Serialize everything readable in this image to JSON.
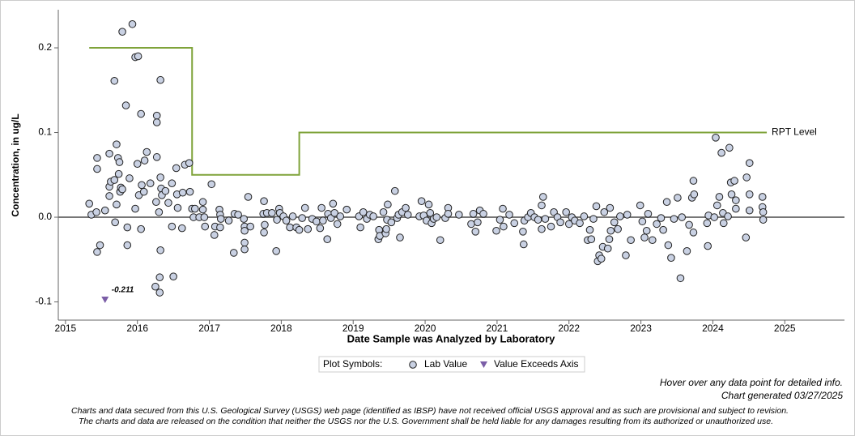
{
  "chart_data": {
    "type": "scatter",
    "x_label": "Date Sample was Analyzed by Laboratory",
    "y_label": "Concentration, in ug/L",
    "xlim": [
      2014.9,
      2025.83
    ],
    "ylim": [
      -0.1215,
      0.245
    ],
    "xticks": [
      2015,
      2016,
      2017,
      2018,
      2019,
      2020,
      2021,
      2022,
      2023,
      2024,
      2025
    ],
    "yticks": [
      -0.1,
      {
        "value": 0,
        "label": "0.0"
      },
      0.1,
      0.2
    ],
    "grid": false,
    "legend_title": "Plot Symbols:",
    "series": [
      {
        "name": "Lab Value",
        "color": "#c9d1e3",
        "marker": "circle",
        "x": [
          2015.33,
          2015.36,
          2015.43,
          2015.44,
          2015.44,
          2015.44,
          2015.48,
          2015.55,
          2015.61,
          2015.61,
          2015.61,
          2015.63,
          2015.68,
          2015.68,
          2015.69,
          2015.71,
          2015.71,
          2015.73,
          2015.74,
          2015.75,
          2015.76,
          2015.77,
          2015.79,
          2015.79,
          2015.84,
          2015.86,
          2015.86,
          2015.89,
          2015.93,
          2015.97,
          2015.97,
          2016.01,
          2016.0,
          2016.02,
          2016.05,
          2016.05,
          2016.06,
          2016.09,
          2016.1,
          2016.13,
          2016.18,
          2016.25,
          2016.26,
          2016.27,
          2016.27,
          2016.27,
          2016.3,
          2016.31,
          2016.31,
          2016.32,
          2016.32,
          2016.32,
          2016.33,
          2016.34,
          2016.39,
          2016.43,
          2016.48,
          2016.48,
          2016.5,
          2016.54,
          2016.55,
          2016.56,
          2016.63,
          2016.62,
          2016.66,
          2016.72,
          2016.73,
          2016.76,
          2016.78,
          2016.8,
          2016.86,
          2016.91,
          2016.91,
          2016.93,
          2016.94,
          2017.03,
          2017.07,
          2017.08,
          2017.14,
          2017.15,
          2017.16,
          2017.15,
          2017.27,
          2017.34,
          2017.35,
          2017.4,
          2017.48,
          2017.49,
          2017.49,
          2017.49,
          2017.49,
          2017.54,
          2017.57,
          2017.75,
          2017.76,
          2017.77,
          2017.76,
          2017.8,
          2017.87,
          2017.93,
          2017.94,
          2017.97,
          2017.98,
          2018.03,
          2018.07,
          2018.12,
          2018.16,
          2018.21,
          2018.25,
          2018.29,
          2018.33,
          2018.37,
          2018.43,
          2018.49,
          2018.54,
          2018.56,
          2018.58,
          2018.64,
          2018.65,
          2018.69,
          2018.72,
          2018.74,
          2018.78,
          2018.82,
          2018.91,
          2019.08,
          2019.1,
          2019.14,
          2019.19,
          2019.23,
          2019.28,
          2019.35,
          2019.36,
          2019.37,
          2019.42,
          2019.45,
          2019.46,
          2019.47,
          2019.48,
          2019.53,
          2019.58,
          2019.61,
          2019.63,
          2019.65,
          2019.68,
          2019.73,
          2019.76,
          2019.92,
          2019.95,
          2019.98,
          2020.02,
          2020.05,
          2020.07,
          2020.09,
          2020.12,
          2020.16,
          2020.21,
          2020.28,
          2020.32,
          2020.32,
          2020.47,
          2020.64,
          2020.67,
          2020.7,
          2020.73,
          2020.76,
          2020.81,
          2020.99,
          2021.04,
          2021.08,
          2021.09,
          2021.17,
          2021.24,
          2021.36,
          2021.37,
          2021.38,
          2021.43,
          2021.47,
          2021.52,
          2021.57,
          2021.62,
          2021.62,
          2021.64,
          2021.67,
          2021.75,
          2021.79,
          2021.84,
          2021.88,
          2021.96,
          2022.0,
          2022.04,
          2022.08,
          2022.15,
          2022.21,
          2022.26,
          2022.29,
          2022.31,
          2022.34,
          2022.38,
          2022.4,
          2022.42,
          2022.45,
          2022.47,
          2022.49,
          2022.54,
          2022.56,
          2022.57,
          2022.58,
          2022.63,
          2022.68,
          2022.71,
          2022.79,
          2022.81,
          2022.86,
          2022.99,
          2023.02,
          2023.05,
          2023.08,
          2023.1,
          2023.16,
          2023.22,
          2023.28,
          2023.31,
          2023.36,
          2023.38,
          2023.42,
          2023.46,
          2023.51,
          2023.55,
          2023.57,
          2023.64,
          2023.67,
          2023.71,
          2023.73,
          2023.73,
          2023.74,
          2023.92,
          2023.93,
          2023.94,
          2024.02,
          2024.04,
          2024.06,
          2024.09,
          2024.12,
          2024.14,
          2024.15,
          2024.21,
          2024.23,
          2024.25,
          2024.26,
          2024.3,
          2024.32,
          2024.32,
          2024.46,
          2024.47,
          2024.51,
          2024.51,
          2024.51,
          2024.69,
          2024.69,
          2024.7,
          2024.7
        ],
        "values": [
          0.016,
          0.003,
          0.006,
          0.07,
          0.057,
          -0.041,
          -0.033,
          0.008,
          0.075,
          0.025,
          0.036,
          0.042,
          0.161,
          0.044,
          -0.006,
          0.086,
          0.015,
          0.07,
          0.051,
          0.065,
          0.03,
          0.035,
          0.219,
          0.033,
          0.132,
          -0.012,
          -0.033,
          0.046,
          0.228,
          0.189,
          0.01,
          0.19,
          0.063,
          0.026,
          -0.014,
          0.122,
          0.038,
          0.03,
          0.067,
          0.077,
          0.04,
          -0.082,
          0.018,
          0.12,
          0.112,
          0.071,
          0.006,
          -0.071,
          -0.089,
          0.162,
          0.047,
          -0.039,
          0.034,
          0.026,
          0.031,
          0.017,
          -0.011,
          0.04,
          -0.07,
          0.058,
          0.027,
          0.011,
          0.029,
          -0.013,
          0.062,
          0.064,
          0.03,
          0.01,
          0,
          0.01,
          0,
          0.009,
          0.018,
          0,
          -0.011,
          0.039,
          -0.021,
          -0.011,
          0.009,
          0.003,
          -0.002,
          -0.012,
          -0.004,
          -0.042,
          0.004,
          0.003,
          -0.002,
          -0.03,
          -0.038,
          -0.011,
          -0.016,
          0.024,
          -0.011,
          0.004,
          -0.018,
          -0.009,
          0.019,
          0.005,
          0.005,
          -0.04,
          -0.003,
          0.01,
          0.005,
          0.001,
          -0.004,
          -0.012,
          0.001,
          -0.012,
          -0.015,
          -0.001,
          0.011,
          -0.014,
          -0.002,
          -0.005,
          -0.013,
          0.011,
          -0.004,
          -0.026,
          0.004,
          -0.001,
          0.016,
          0.005,
          -0.008,
          0.001,
          0.009,
          0.001,
          -0.012,
          0.006,
          -0.002,
          0.003,
          0.001,
          -0.026,
          -0.015,
          -0.022,
          0.006,
          -0.019,
          -0.014,
          -0.003,
          0.015,
          -0.006,
          0.031,
          -0.001,
          0.003,
          -0.024,
          0.006,
          0.011,
          0.003,
          0.001,
          0.019,
          0.002,
          -0.004,
          0.015,
          0.005,
          -0.007,
          -0.002,
          0,
          -0.027,
          -0.001,
          0.011,
          0.004,
          0.003,
          -0.008,
          0.004,
          -0.017,
          -0.006,
          0.008,
          0.004,
          -0.016,
          -0.003,
          0.01,
          -0.011,
          0.003,
          -0.007,
          -0.017,
          -0.032,
          -0.004,
          0,
          0.005,
          0,
          -0.003,
          -0.014,
          0.014,
          0.024,
          -0.002,
          -0.011,
          0.006,
          0,
          -0.006,
          0.006,
          -0.008,
          0,
          -0.004,
          -0.007,
          0.001,
          -0.027,
          -0.015,
          -0.026,
          -0.002,
          0.013,
          -0.052,
          -0.045,
          -0.049,
          -0.035,
          0.006,
          -0.037,
          -0.026,
          0.011,
          -0.016,
          -0.006,
          -0.014,
          0.001,
          -0.045,
          0.003,
          -0.027,
          0.014,
          -0.005,
          -0.024,
          -0.016,
          0.004,
          -0.027,
          -0.008,
          -0.001,
          -0.015,
          0.018,
          -0.033,
          -0.048,
          -0.002,
          0.023,
          -0.072,
          0,
          -0.04,
          -0.009,
          0.023,
          0.043,
          -0.018,
          0.027,
          -0.007,
          -0.034,
          0.002,
          0,
          0.094,
          0.014,
          0.024,
          0.076,
          0.005,
          -0.007,
          0.001,
          0.082,
          0.041,
          0.027,
          0.043,
          0.02,
          0.01,
          -0.024,
          0.047,
          0.064,
          0.027,
          0.008,
          0.024,
          0.012,
          0.006,
          -0.003
        ]
      },
      {
        "name": "Value Exceeds Axis",
        "color": "#7b5ea7",
        "marker": "triangle",
        "x": [
          2015.55
        ],
        "values": [
          -0.211
        ],
        "value_labels": [
          "-0.211"
        ]
      },
      {
        "name": "RPT Level",
        "color": "#7fa33a",
        "marker": "step",
        "x": [
          2015.33,
          2016.76,
          2016.76,
          2018.25,
          2018.25,
          2024.75
        ],
        "values": [
          0.2,
          0.2,
          0.05,
          0.05,
          0.1,
          0.1
        ]
      }
    ]
  },
  "footer": {
    "hover_note": "Hover over any data point for detailed info.",
    "generated": "Chart generated 03/27/2025",
    "disclaimer": [
      "Charts and data secured from this U.S. Geological Survey (USGS) web page (identified as IBSP) have not received official USGS approval and as such are provisional and subject to revision.",
      "The charts and data are released on the condition that neither the USGS nor the U.S. Government shall be held liable for any damages resulting from its authorized or unauthorized use."
    ]
  }
}
